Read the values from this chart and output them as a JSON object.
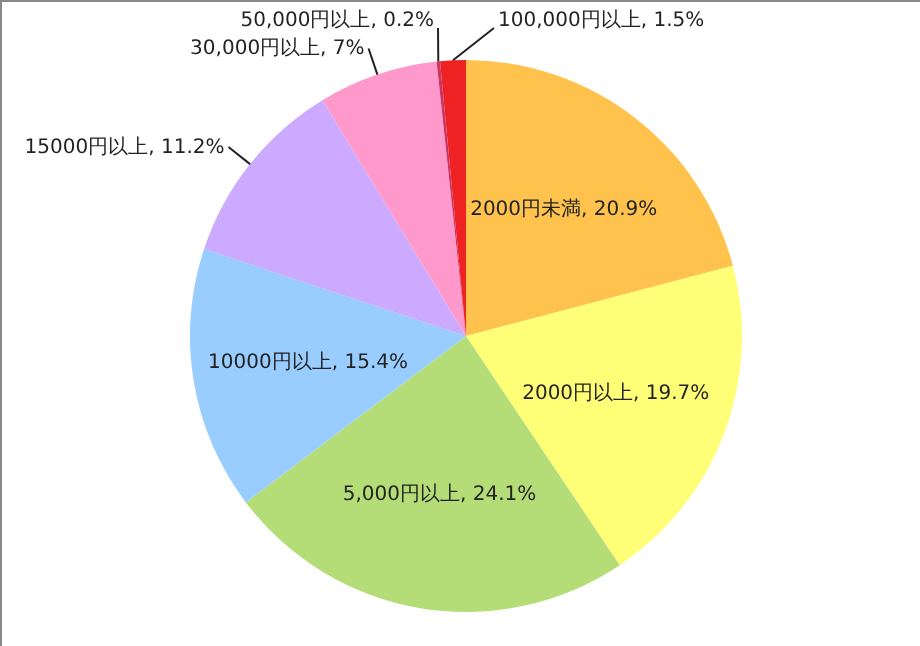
{
  "chart_data": {
    "type": "pie",
    "categories": [
      "2000円未満",
      "2000円以上",
      "5,000円以上",
      "10000円以上",
      "15000円以上",
      "30,000円以上",
      "50,000円以上",
      "100,000円以上"
    ],
    "values": [
      20.9,
      19.7,
      24.1,
      15.4,
      11.2,
      7,
      0.2,
      1.5
    ],
    "value_labels": [
      "20.9%",
      "19.7%",
      "24.1%",
      "15.4%",
      "11.2%",
      "7%",
      "0.2%",
      "1.5%"
    ],
    "colors": [
      "#ffc34d",
      "#ffff77",
      "#b5dd77",
      "#99ccff",
      "#ccaaff",
      "#ff99cc",
      "#cc3366",
      "#ee2222"
    ]
  }
}
